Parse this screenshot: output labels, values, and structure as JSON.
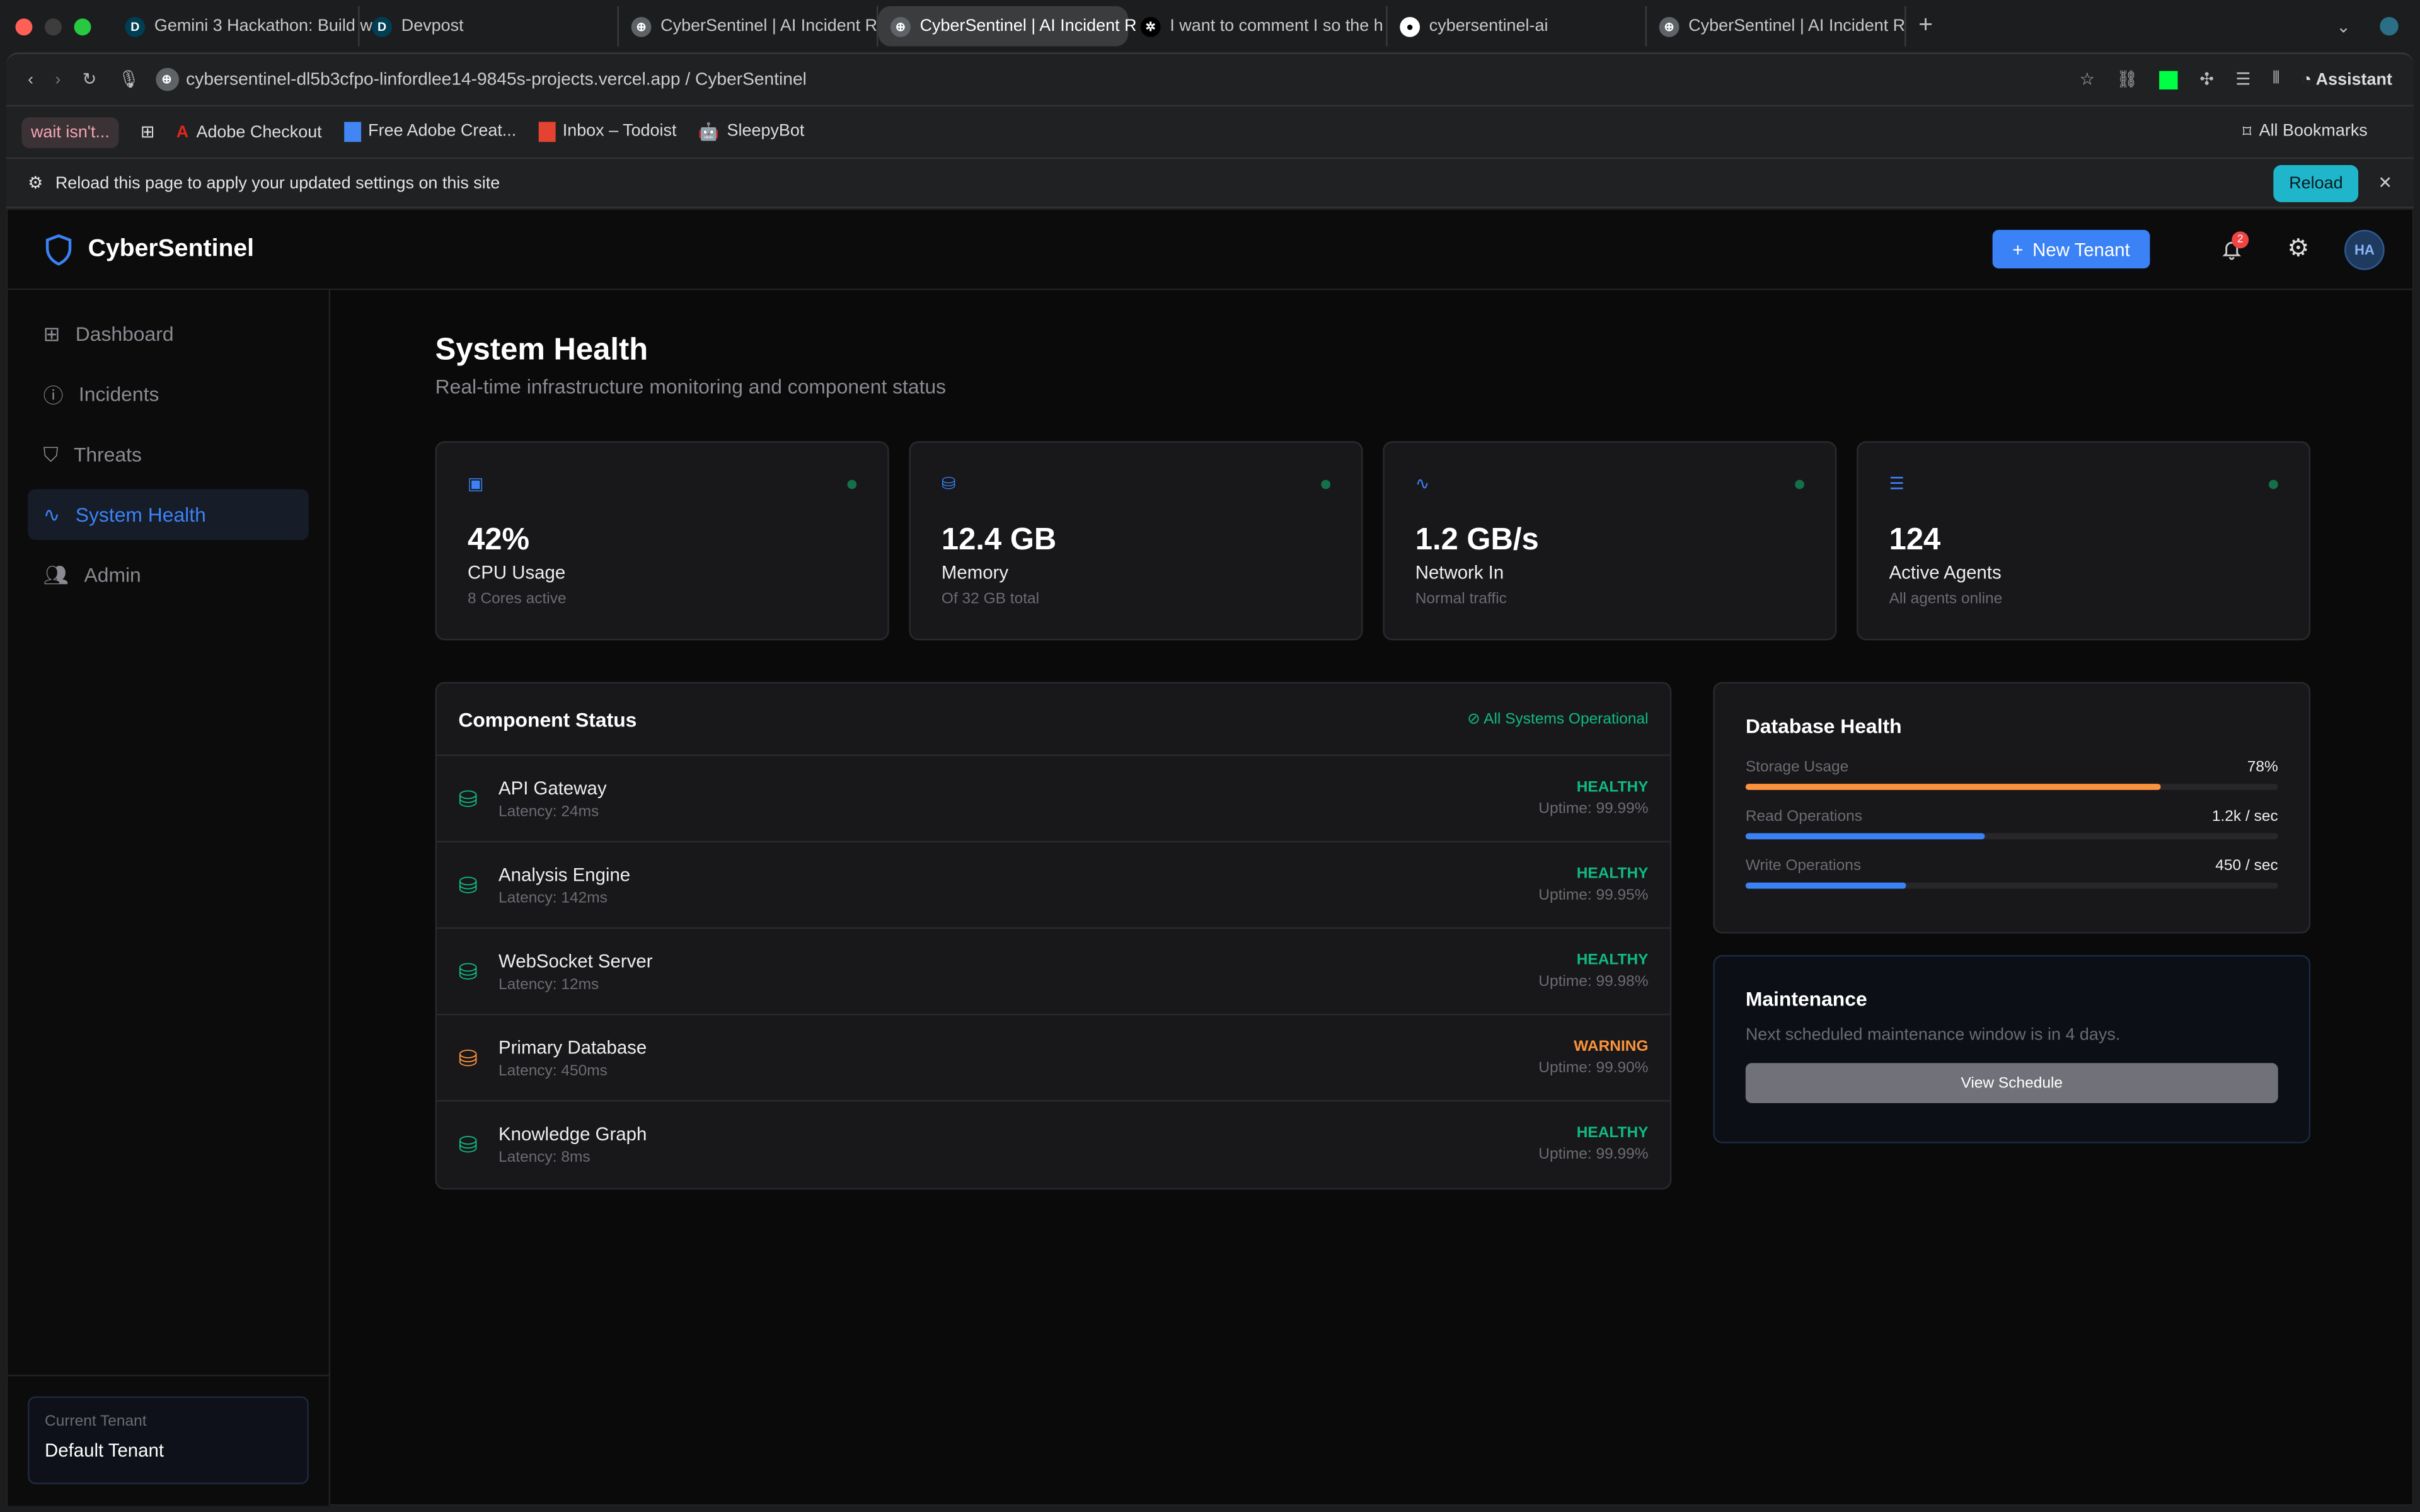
{
  "browser": {
    "tabs": [
      {
        "label": "Gemini 3 Hackathon: Build w",
        "icon": "devpost-icon"
      },
      {
        "label": "Devpost",
        "icon": "devpost-icon"
      },
      {
        "label": "CyberSentinel | AI Incident R",
        "icon": "globe-icon"
      },
      {
        "label": "CyberSentinel | AI Incident R",
        "icon": "globe-icon",
        "active": true
      },
      {
        "label": "I want to comment I so the h",
        "icon": "openai-icon"
      },
      {
        "label": "cybersentinel-ai",
        "icon": "github-icon"
      },
      {
        "label": "CyberSentinel | AI Incident R",
        "icon": "globe-icon"
      }
    ],
    "url": "cybersentinel-dl5b3cfpo-linfordlee14-9845s-projects.vercel.app / CyberSentinel",
    "assistant": "Assistant",
    "bookmarks": [
      "wait isn't...",
      "Adobe Checkout",
      "Free Adobe Creat...",
      "Inbox – Todoist",
      "SleepyBot"
    ],
    "all_bookmarks": "All Bookmarks",
    "infobar": {
      "text": "Reload this page to apply your updated settings on this site",
      "button": "Reload"
    }
  },
  "app": {
    "brand": "CyberSentinel",
    "new_tenant": "New Tenant",
    "notifications": "2",
    "avatar": "HA",
    "nav": [
      "Dashboard",
      "Incidents",
      "Threats",
      "System Health",
      "Admin"
    ],
    "tenant": {
      "label": "Current Tenant",
      "value": "Default Tenant"
    }
  },
  "page": {
    "title": "System Health",
    "subtitle": "Real-time infrastructure monitoring and component status",
    "stats": [
      {
        "value": "42%",
        "label": "CPU Usage",
        "sub": "8 Cores active",
        "icon": "cpu-icon"
      },
      {
        "value": "12.4 GB",
        "label": "Memory",
        "sub": "Of 32 GB total",
        "icon": "hard-drive-icon"
      },
      {
        "value": "1.2 GB/s",
        "label": "Network In",
        "sub": "Normal traffic",
        "icon": "activity-icon"
      },
      {
        "value": "124",
        "label": "Active Agents",
        "sub": "All agents online",
        "icon": "server-icon"
      }
    ],
    "components": {
      "title": "Component Status",
      "status": "All Systems Operational",
      "rows": [
        {
          "name": "API Gateway",
          "latency": "Latency: 24ms",
          "status": "HEALTHY",
          "uptime": "Uptime: 99.99%"
        },
        {
          "name": "Analysis Engine",
          "latency": "Latency: 142ms",
          "status": "HEALTHY",
          "uptime": "Uptime: 99.95%"
        },
        {
          "name": "WebSocket Server",
          "latency": "Latency: 12ms",
          "status": "HEALTHY",
          "uptime": "Uptime: 99.98%"
        },
        {
          "name": "Primary Database",
          "latency": "Latency: 450ms",
          "status": "WARNING",
          "uptime": "Uptime: 99.90%"
        },
        {
          "name": "Knowledge Graph",
          "latency": "Latency: 8ms",
          "status": "HEALTHY",
          "uptime": "Uptime: 99.99%"
        }
      ]
    },
    "db": {
      "title": "Database Health",
      "metrics": [
        {
          "label": "Storage Usage",
          "value": "78%",
          "fill": 78,
          "color": "#fb923c"
        },
        {
          "label": "Read Operations",
          "value": "1.2k / sec",
          "fill": 45,
          "color": "#3b82f6"
        },
        {
          "label": "Write Operations",
          "value": "450 / sec",
          "fill": 30,
          "color": "#3b82f6"
        }
      ]
    },
    "maintenance": {
      "title": "Maintenance",
      "text": "Next scheduled maintenance window is in 4 days.",
      "button": "View Schedule"
    }
  },
  "colors": {
    "healthy": "#10b981",
    "warning": "#fb923c",
    "accent": "#3b82f6"
  }
}
